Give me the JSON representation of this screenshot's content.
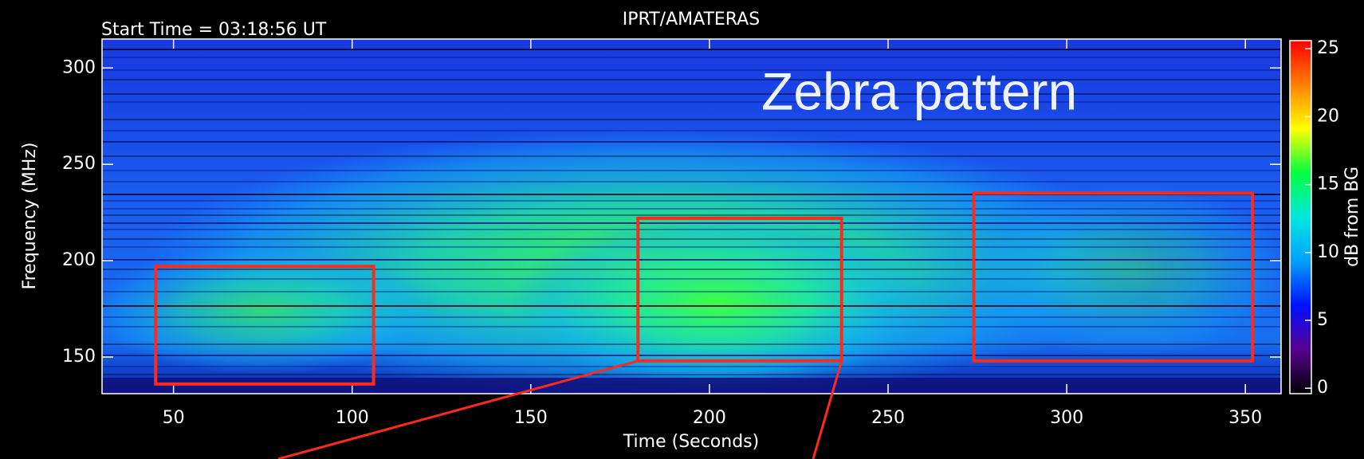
{
  "chart_data": {
    "type": "spectrogram",
    "title": "IPRT/AMATERAS",
    "subtitle": "Start Time = 03:18:56 UT",
    "annotation": "Zebra pattern",
    "x_label": "Time (Seconds)",
    "y_label": "Frequency (MHz)",
    "xlim": [
      30,
      360
    ],
    "xticks": [
      50,
      100,
      150,
      200,
      250,
      300,
      350
    ],
    "ylim": [
      131,
      315
    ],
    "yticks": [
      150,
      200,
      250,
      300
    ],
    "colorbar": {
      "label": "dB from BG",
      "lim": [
        -0.4,
        25.6
      ],
      "ticks": [
        0,
        5,
        10,
        15,
        20,
        25
      ],
      "colors": [
        "#000000",
        "#5a0090",
        "#0010ff",
        "#00a0ff",
        "#00e8e0",
        "#00ff40",
        "#ffff00",
        "#ff8000",
        "#ff0000"
      ]
    },
    "regions": [
      {
        "x": [
          45,
          106
        ],
        "y": [
          136,
          197
        ]
      },
      {
        "x": [
          180,
          237
        ],
        "y": [
          148,
          222
        ]
      },
      {
        "x": [
          274,
          352
        ],
        "y": [
          148,
          235
        ]
      }
    ],
    "region_color": "#ff2a1a"
  }
}
